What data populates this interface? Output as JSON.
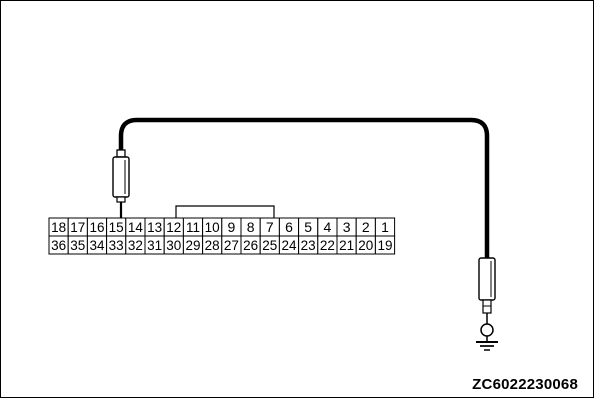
{
  "connector": {
    "top_row": [
      "18",
      "17",
      "16",
      "15",
      "14",
      "13",
      "12",
      "11",
      "10",
      "9",
      "8",
      "7",
      "6",
      "5",
      "4",
      "3",
      "2",
      "1"
    ],
    "bottom_row": [
      "36",
      "35",
      "34",
      "33",
      "32",
      "31",
      "30",
      "29",
      "28",
      "27",
      "26",
      "25",
      "24",
      "23",
      "22",
      "21",
      "20",
      "19"
    ],
    "probe_pin": "15"
  },
  "figure_code": "ZC6022230068",
  "icons": {
    "ground": "ground-symbol-icon",
    "probe": "test-probe-icon"
  },
  "colors": {
    "line": "#000000",
    "background": "#ffffff"
  }
}
